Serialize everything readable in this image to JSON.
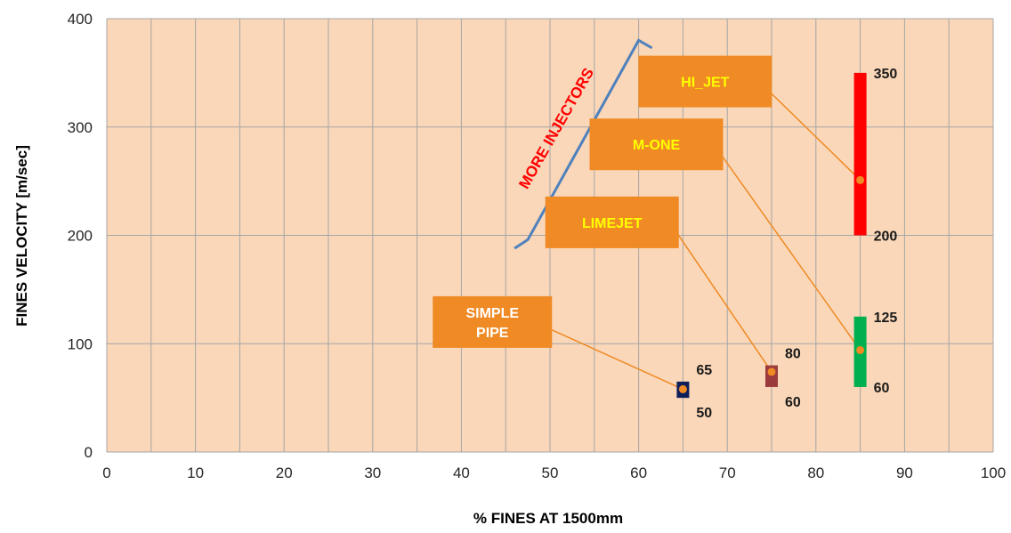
{
  "chart_data": {
    "type": "range-bar",
    "title": "",
    "xlabel": "% FINES  AT 1500mm",
    "ylabel": "FINES VELOCITY [m/sec]",
    "xlim": [
      0,
      100
    ],
    "ylim": [
      0,
      400
    ],
    "x_ticks": [
      0,
      10,
      20,
      30,
      40,
      50,
      60,
      70,
      80,
      90,
      100
    ],
    "y_ticks": [
      0,
      100,
      200,
      300,
      400
    ],
    "grid": true,
    "plot_background": "#fad7b8",
    "grid_color": "#a6a6a6",
    "series": [
      {
        "name": "SIMPLE PIPE",
        "label_lines": [
          "SIMPLE",
          "PIPE"
        ],
        "x": 65,
        "low": 50,
        "high": 65,
        "point_y": 58,
        "color": "#0f1f5a",
        "label_color": "#ffffff",
        "box_center": [
          43.5,
          120
        ]
      },
      {
        "name": "LIMEJET",
        "label_lines": [
          "LIMEJET"
        ],
        "x": 75,
        "low": 60,
        "high": 80,
        "point_y": 74,
        "color": "#9b3b3b",
        "label_color": "#ffff00",
        "box_center": [
          57,
          212
        ]
      },
      {
        "name": "M-ONE",
        "label_lines": [
          "M-ONE"
        ],
        "x": 85,
        "low": 60,
        "high": 125,
        "point_y": 94,
        "color": "#00b050",
        "label_color": "#ffff00",
        "box_center": [
          62,
          284
        ]
      },
      {
        "name": "HI_JET",
        "label_lines": [
          "HI_JET"
        ],
        "x": 85,
        "low": 200,
        "high": 350,
        "point_y": 251,
        "color": "#ff0000",
        "label_color": "#ffff00",
        "box_center": [
          67.5,
          342
        ]
      }
    ],
    "annotation": {
      "text": "MORE INJECTORS",
      "color": "#ff0000",
      "bracket_color": "#4f81bd"
    },
    "label_box_color": "#ef8a24",
    "connector_color": "#ef8a24"
  }
}
